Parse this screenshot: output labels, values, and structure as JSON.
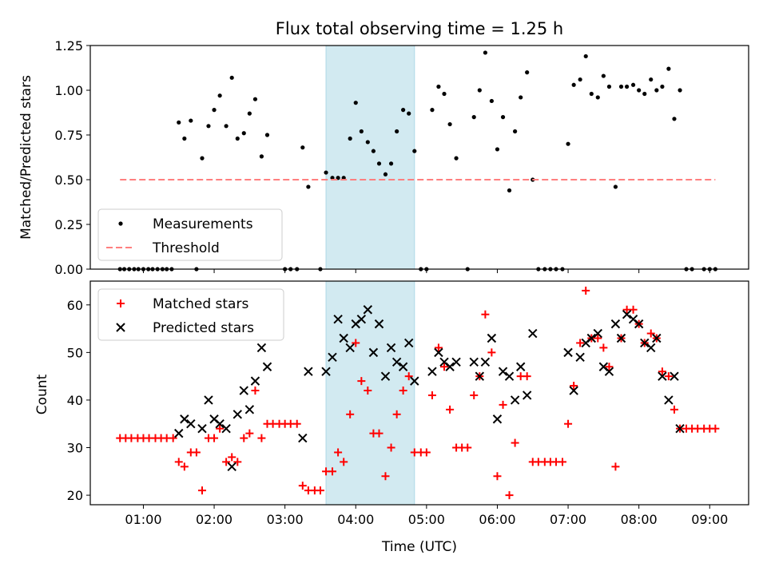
{
  "chart_data": [
    {
      "type": "scatter",
      "title": "Flux total observing time = 1.25 h",
      "ylabel": "Matched/Predicted stars",
      "ylim": [
        0,
        1.25
      ],
      "yticks": [
        "0.00",
        "0.25",
        "0.50",
        "0.75",
        "1.00",
        "1.25"
      ],
      "xlim_hours": [
        0.25,
        9.55
      ],
      "highlight_span_hours": [
        3.58,
        4.83
      ],
      "highlight_color": "#add8e6",
      "legend": {
        "position": "lower-left",
        "entries": [
          "Measurements",
          "Threshold"
        ]
      },
      "series": [
        {
          "name": "Measurements",
          "color": "#000000",
          "marker": "dot",
          "x": [
            0.67,
            0.73,
            0.8,
            0.87,
            0.93,
            1.0,
            1.07,
            1.13,
            1.2,
            1.27,
            1.33,
            1.4,
            1.5,
            1.58,
            1.67,
            1.75,
            1.83,
            1.92,
            2.0,
            2.08,
            2.17,
            2.25,
            2.33,
            2.42,
            2.5,
            2.58,
            2.67,
            2.75,
            3.0,
            3.08,
            3.17,
            3.25,
            3.33,
            3.5,
            3.58,
            3.67,
            3.75,
            3.83,
            3.92,
            4.0,
            4.08,
            4.17,
            4.25,
            4.33,
            4.42,
            4.5,
            4.58,
            4.67,
            4.75,
            4.83,
            4.92,
            5.0,
            5.08,
            5.17,
            5.25,
            5.33,
            5.42,
            5.58,
            5.67,
            5.75,
            5.83,
            5.92,
            6.0,
            6.08,
            6.17,
            6.25,
            6.33,
            6.42,
            6.5,
            6.58,
            6.67,
            6.75,
            6.83,
            6.92,
            7.0,
            7.08,
            7.17,
            7.25,
            7.33,
            7.42,
            7.5,
            7.58,
            7.67,
            7.75,
            7.83,
            7.92,
            8.0,
            8.08,
            8.17,
            8.25,
            8.33,
            8.42,
            8.5,
            8.58,
            8.67,
            8.75,
            8.92,
            9.0,
            9.08
          ],
          "y": [
            0,
            0,
            0,
            0,
            0,
            0,
            0,
            0,
            0,
            0,
            0,
            0,
            0.82,
            0.73,
            0.83,
            0,
            0.62,
            0.8,
            0.89,
            0.97,
            0.8,
            1.07,
            0.73,
            0.76,
            0.87,
            0.95,
            0.63,
            0.75,
            0,
            0,
            0,
            0.68,
            0.46,
            0,
            0.54,
            0.51,
            0.51,
            0.51,
            0.73,
            0.93,
            0.77,
            0.71,
            0.66,
            0.59,
            0.53,
            0.59,
            0.77,
            0.89,
            0.87,
            0.66,
            0,
            0,
            0.89,
            1.02,
            0.98,
            0.81,
            0.62,
            0,
            0.85,
            1.0,
            1.21,
            0.94,
            0.67,
            0.85,
            0.44,
            0.77,
            0.96,
            1.1,
            0.5,
            0,
            0,
            0,
            0,
            0,
            0.7,
            1.03,
            1.06,
            1.19,
            0.98,
            0.96,
            1.08,
            1.02,
            0.46,
            1.02,
            1.02,
            1.03,
            1.0,
            0.98,
            1.06,
            1.0,
            1.02,
            1.12,
            0.84,
            1.0,
            0,
            0,
            0,
            0,
            0
          ]
        },
        {
          "name": "Threshold",
          "color": "#ff7f7f",
          "style": "dashed",
          "x": [
            0.67,
            9.08
          ],
          "y": [
            0.5,
            0.5
          ]
        }
      ]
    },
    {
      "type": "scatter",
      "xlabel": "Time (UTC)",
      "ylabel": "Count",
      "ylim": [
        18,
        65
      ],
      "yticks": [
        "20",
        "30",
        "40",
        "50",
        "60"
      ],
      "xticks": [
        "01:00",
        "02:00",
        "03:00",
        "04:00",
        "05:00",
        "06:00",
        "07:00",
        "08:00",
        "09:00"
      ],
      "xtick_hours": [
        1,
        2,
        3,
        4,
        5,
        6,
        7,
        8,
        9
      ],
      "xlim_hours": [
        0.25,
        9.55
      ],
      "highlight_span_hours": [
        3.58,
        4.83
      ],
      "highlight_color": "#add8e6",
      "legend": {
        "position": "top-left",
        "entries": [
          "Matched stars",
          "Predicted stars"
        ]
      },
      "series": [
        {
          "name": "Matched stars",
          "color": "#ff0000",
          "marker": "plus",
          "x": [
            0.67,
            0.75,
            0.83,
            0.92,
            1.0,
            1.08,
            1.17,
            1.25,
            1.33,
            1.42,
            1.5,
            1.58,
            1.67,
            1.75,
            1.83,
            1.92,
            2.0,
            2.08,
            2.17,
            2.25,
            2.33,
            2.42,
            2.5,
            2.58,
            2.67,
            2.75,
            2.83,
            2.92,
            3.0,
            3.08,
            3.17,
            3.25,
            3.33,
            3.42,
            3.5,
            3.58,
            3.67,
            3.75,
            3.83,
            3.92,
            4.0,
            4.08,
            4.17,
            4.25,
            4.33,
            4.42,
            4.5,
            4.58,
            4.67,
            4.75,
            4.83,
            4.92,
            5.0,
            5.08,
            5.17,
            5.25,
            5.33,
            5.42,
            5.5,
            5.58,
            5.67,
            5.75,
            5.83,
            5.92,
            6.0,
            6.08,
            6.17,
            6.25,
            6.33,
            6.42,
            6.5,
            6.58,
            6.67,
            6.75,
            6.83,
            6.92,
            7.0,
            7.08,
            7.17,
            7.25,
            7.33,
            7.42,
            7.5,
            7.58,
            7.67,
            7.75,
            7.83,
            7.92,
            8.0,
            8.08,
            8.17,
            8.25,
            8.33,
            8.42,
            8.5,
            8.58,
            8.67,
            8.75,
            8.83,
            8.92,
            9.0,
            9.08
          ],
          "y": [
            32,
            32,
            32,
            32,
            32,
            32,
            32,
            32,
            32,
            32,
            27,
            26,
            29,
            29,
            21,
            32,
            32,
            34,
            27,
            28,
            27,
            32,
            33,
            42,
            32,
            35,
            35,
            35,
            35,
            35,
            35,
            22,
            21,
            21,
            21,
            25,
            25,
            29,
            27,
            37,
            52,
            44,
            42,
            33,
            33,
            24,
            30,
            37,
            42,
            45,
            29,
            29,
            29,
            41,
            51,
            47,
            38,
            30,
            30,
            30,
            41,
            45,
            58,
            50,
            24,
            39,
            20,
            31,
            45,
            45,
            27,
            27,
            27,
            27,
            27,
            27,
            35,
            43,
            52,
            63,
            53,
            53,
            51,
            47,
            26,
            53,
            59,
            59,
            56,
            52,
            54,
            53,
            46,
            45,
            38,
            34,
            34,
            34,
            34,
            34,
            34,
            34
          ]
        },
        {
          "name": "Predicted stars",
          "color": "#000000",
          "marker": "x",
          "x": [
            1.5,
            1.58,
            1.67,
            1.83,
            1.92,
            2.0,
            2.08,
            2.17,
            2.25,
            2.33,
            2.42,
            2.5,
            2.58,
            2.67,
            2.75,
            3.25,
            3.33,
            3.58,
            3.67,
            3.75,
            3.83,
            3.92,
            4.0,
            4.08,
            4.17,
            4.25,
            4.33,
            4.42,
            4.5,
            4.58,
            4.67,
            4.75,
            4.83,
            5.08,
            5.17,
            5.25,
            5.33,
            5.42,
            5.67,
            5.75,
            5.83,
            5.92,
            6.0,
            6.08,
            6.17,
            6.25,
            6.33,
            6.42,
            6.5,
            7.0,
            7.08,
            7.17,
            7.25,
            7.33,
            7.42,
            7.5,
            7.58,
            7.67,
            7.75,
            7.83,
            7.92,
            8.0,
            8.08,
            8.17,
            8.25,
            8.33,
            8.42,
            8.5,
            8.58
          ],
          "y": [
            33,
            36,
            35,
            34,
            40,
            36,
            35,
            34,
            26,
            37,
            42,
            38,
            44,
            51,
            47,
            32,
            46,
            46,
            49,
            57,
            53,
            51,
            56,
            57,
            59,
            50,
            56,
            45,
            51,
            48,
            47,
            52,
            44,
            46,
            50,
            48,
            47,
            48,
            48,
            45,
            48,
            53,
            36,
            46,
            45,
            40,
            47,
            41,
            54,
            50,
            42,
            49,
            52,
            53,
            54,
            47,
            46,
            56,
            53,
            58,
            57,
            56,
            52,
            51,
            53,
            45,
            40,
            45,
            34
          ]
        }
      ]
    }
  ]
}
